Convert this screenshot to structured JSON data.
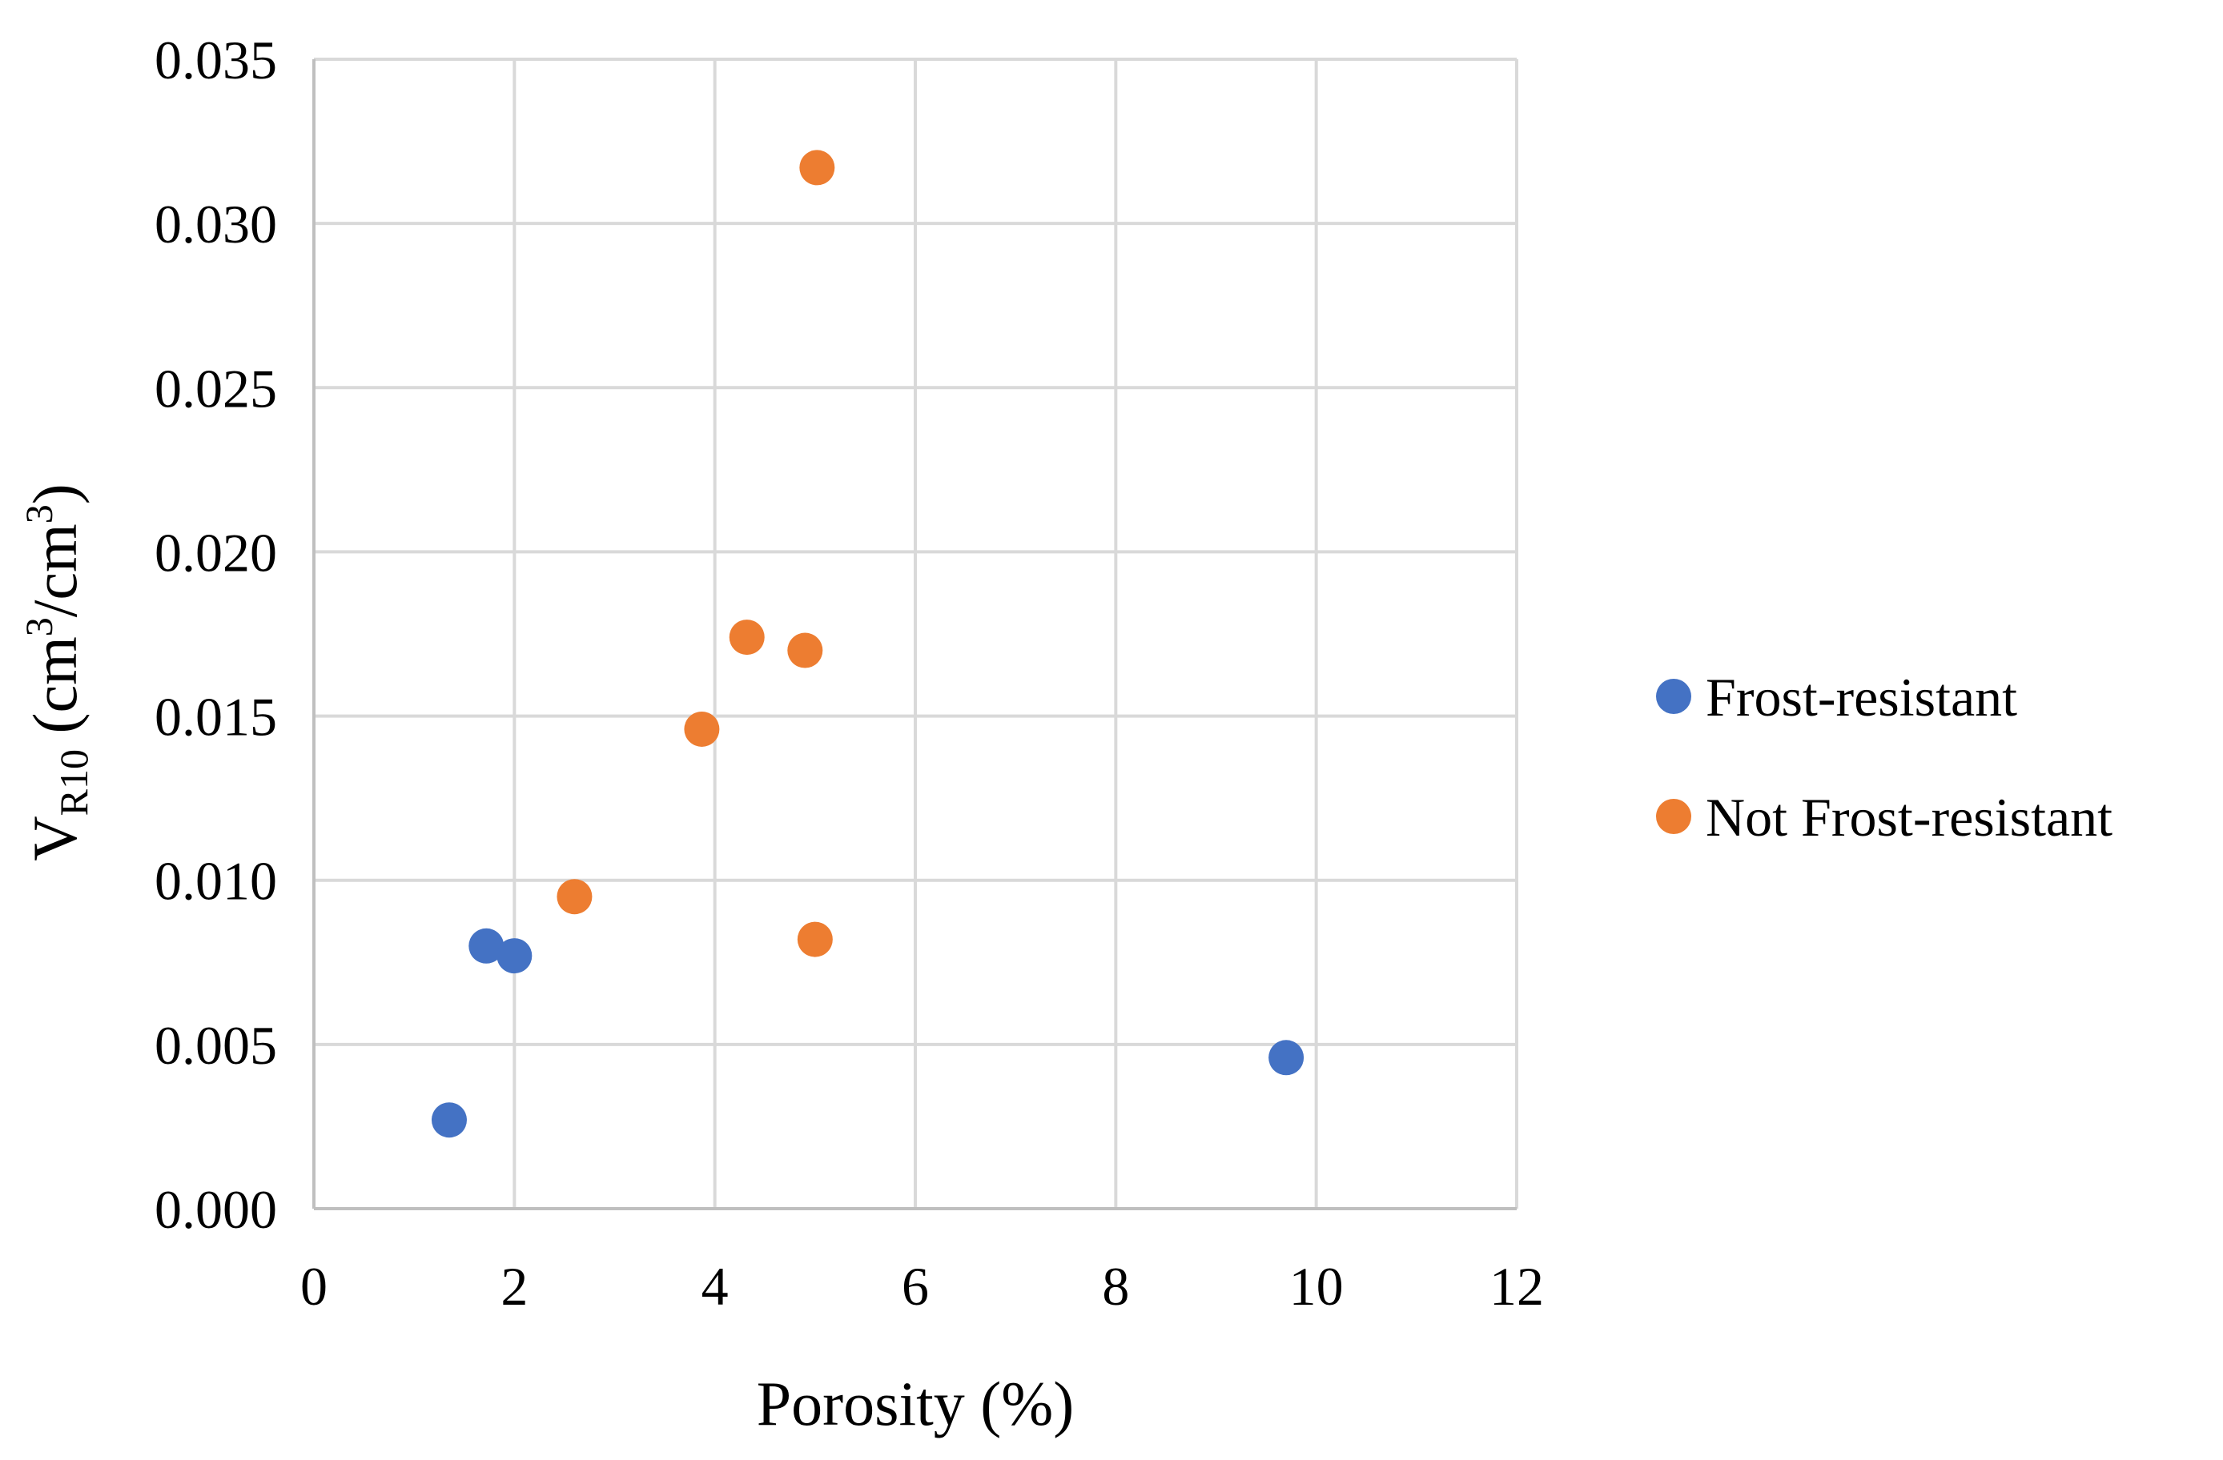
{
  "chart_data": {
    "type": "scatter",
    "title": "",
    "xlabel": "Porosity (%)",
    "ylabel": {
      "main": "V",
      "sub": "R10",
      "unit_open": " (cm",
      "unit_sup1": "3",
      "unit_mid": "/cm",
      "unit_sup2": "3",
      "unit_close": ")"
    },
    "xlim": [
      0,
      12
    ],
    "ylim": [
      0,
      0.035
    ],
    "xticks": [
      0,
      2,
      4,
      6,
      8,
      10,
      12
    ],
    "xtick_labels": [
      "0",
      "2",
      "4",
      "6",
      "8",
      "10",
      "12"
    ],
    "yticks": [
      0,
      0.005,
      0.01,
      0.015,
      0.02,
      0.025,
      0.03,
      0.035
    ],
    "ytick_labels": [
      "0.000",
      "0.005",
      "0.010",
      "0.015",
      "0.020",
      "0.025",
      "0.030",
      "0.035"
    ],
    "grid": true,
    "legend_position": "right",
    "series": [
      {
        "name": "Frost-resistant",
        "color": "#4472C4",
        "points": [
          {
            "x": 1.35,
            "y": 0.0027
          },
          {
            "x": 1.72,
            "y": 0.008
          },
          {
            "x": 2.0,
            "y": 0.0077
          },
          {
            "x": 9.7,
            "y": 0.0046
          }
        ]
      },
      {
        "name": "Not Frost-resistant",
        "color": "#ED7D31",
        "points": [
          {
            "x": 2.6,
            "y": 0.0095
          },
          {
            "x": 3.87,
            "y": 0.0146
          },
          {
            "x": 4.32,
            "y": 0.0174
          },
          {
            "x": 4.9,
            "y": 0.017
          },
          {
            "x": 5.0,
            "y": 0.0082
          },
          {
            "x": 5.02,
            "y": 0.0317
          }
        ]
      }
    ]
  }
}
